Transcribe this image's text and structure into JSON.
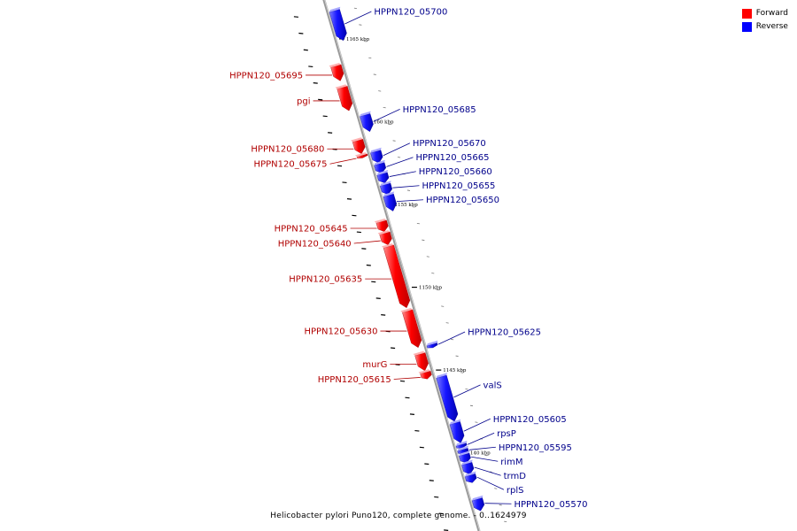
{
  "legend": {
    "items": [
      {
        "label": "Forward",
        "color": "#ff0000"
      },
      {
        "label": "Reverse",
        "color": "#0000ff"
      }
    ]
  },
  "caption": "Helicobacter pylori Puno120, complete genome. - 0..1624979",
  "colors": {
    "forward": "#ff0000",
    "reverse": "#1515ff",
    "forward_label": "#b00000",
    "reverse_label": "#00008b",
    "backbone": "#999999"
  },
  "scale_labels": [
    {
      "label": "1165 kbp",
      "kbp": 1165
    },
    {
      "label": "1160 kbp",
      "kbp": 1160
    },
    {
      "label": "1155 kbp",
      "kbp": 1155
    },
    {
      "label": "1150 kbp",
      "kbp": 1150
    },
    {
      "label": "1145 kbp",
      "kbp": 1145
    },
    {
      "label": "1140 kbp",
      "kbp": 1140
    }
  ],
  "genes": [
    {
      "name": "HPPN120_05700",
      "strand": "reverse",
      "from": 1166.7,
      "to": 1164.9
    },
    {
      "name": "HPPN120_05695",
      "strand": "forward",
      "from": 1163.6,
      "to": 1162.7
    },
    {
      "name": "pgi",
      "strand": "forward",
      "from": 1162.3,
      "to": 1160.9
    },
    {
      "name": "HPPN120_05685",
      "strand": "reverse",
      "from": 1160.4,
      "to": 1159.4
    },
    {
      "name": "HPPN120_05680",
      "strand": "forward",
      "from": 1159.1,
      "to": 1158.3
    },
    {
      "name": "HPPN120_05675",
      "strand": "forward",
      "from": 1158.2,
      "to": 1158.05
    },
    {
      "name": "HPPN120_05670",
      "strand": "reverse",
      "from": 1158.2,
      "to": 1157.5
    },
    {
      "name": "HPPN120_05665",
      "strand": "reverse",
      "from": 1157.45,
      "to": 1156.9
    },
    {
      "name": "HPPN120_05660",
      "strand": "reverse",
      "from": 1156.85,
      "to": 1156.3
    },
    {
      "name": "HPPN120_05655",
      "strand": "reverse",
      "from": 1156.2,
      "to": 1155.6
    },
    {
      "name": "HPPN120_05650",
      "strand": "reverse",
      "from": 1155.55,
      "to": 1154.6
    },
    {
      "name": "HPPN120_05645",
      "strand": "forward",
      "from": 1154.2,
      "to": 1153.6
    },
    {
      "name": "HPPN120_05640",
      "strand": "forward",
      "from": 1153.5,
      "to": 1152.8
    },
    {
      "name": "HPPN120_05635",
      "strand": "forward",
      "from": 1152.7,
      "to": 1149.0
    },
    {
      "name": "HPPN120_05630",
      "strand": "forward",
      "from": 1148.8,
      "to": 1146.6
    },
    {
      "name": "HPPN120_05625",
      "strand": "reverse",
      "from": 1146.55,
      "to": 1146.35
    },
    {
      "name": "murG",
      "strand": "forward",
      "from": 1146.2,
      "to": 1145.2
    },
    {
      "name": "HPPN120_05615",
      "strand": "forward",
      "from": 1145.1,
      "to": 1144.7
    },
    {
      "name": "valS",
      "strand": "reverse",
      "from": 1144.6,
      "to": 1141.9
    },
    {
      "name": "HPPN120_05605",
      "strand": "reverse",
      "from": 1141.8,
      "to": 1140.6
    },
    {
      "name": "rpsP",
      "strand": "reverse",
      "from": 1140.5,
      "to": 1140.3
    },
    {
      "name": "HPPN120_05595",
      "strand": "reverse",
      "from": 1140.2,
      "to": 1139.95
    },
    {
      "name": "rimM",
      "strand": "reverse",
      "from": 1139.9,
      "to": 1139.4
    },
    {
      "name": "trmD",
      "strand": "reverse",
      "from": 1139.35,
      "to": 1138.7
    },
    {
      "name": "rplS",
      "strand": "reverse",
      "from": 1138.65,
      "to": 1138.2
    },
    {
      "name": "HPPN120_05570",
      "strand": "reverse",
      "from": 1137.2,
      "to": 1136.5
    }
  ]
}
